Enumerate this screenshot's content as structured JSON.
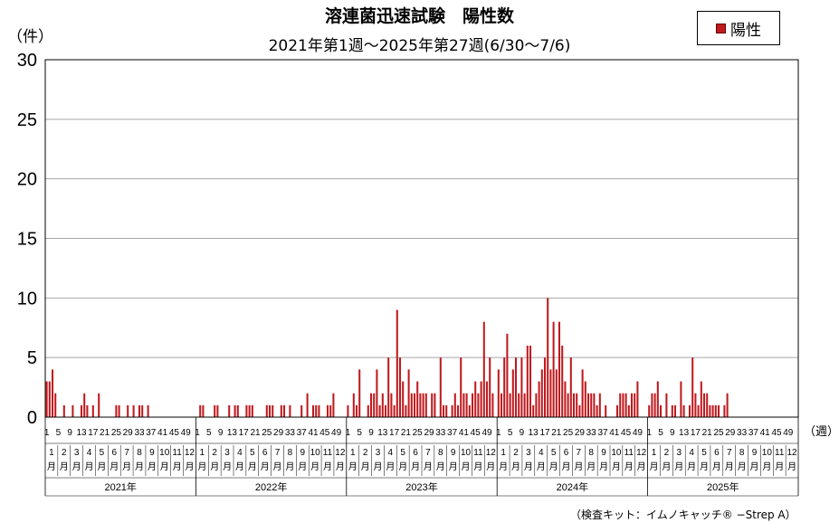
{
  "chart_data": {
    "type": "bar",
    "title": "溶連菌迅速試験　陽性数",
    "subtitle": "2021年第1週～2025年第27週(6/30～7/6)",
    "ylabel": "（件）",
    "xlabel": "（週）",
    "ylim": [
      0,
      30
    ],
    "yticks": [
      0,
      5,
      10,
      15,
      20,
      25,
      30
    ],
    "legend": {
      "position": "top-right",
      "entries": [
        "陽性"
      ]
    },
    "grid": true,
    "note": "（検査キット：イムノキャッチ® −Strep A）",
    "colors": {
      "bar": "#c0191e"
    },
    "week_tick_labels": [
      "1",
      "5",
      "9",
      "13",
      "17",
      "21",
      "25",
      "29",
      "33",
      "37",
      "41",
      "45",
      "49"
    ],
    "month_labels": [
      "1月",
      "2月",
      "3月",
      "4月",
      "5月",
      "6月",
      "7月",
      "8月",
      "9月",
      "10月",
      "11月",
      "12月"
    ],
    "year_labels": [
      "2021年",
      "2022年",
      "2023年",
      "2024年",
      "2025年"
    ],
    "series": [
      {
        "name": "陽性",
        "values": [
          [
            3,
            3,
            4,
            2,
            0,
            0,
            1,
            0,
            0,
            1,
            0,
            0,
            1,
            2,
            1,
            0,
            1,
            0,
            2,
            0,
            0,
            0,
            0,
            0,
            1,
            1,
            0,
            0,
            1,
            0,
            1,
            0,
            1,
            1,
            0,
            1,
            0,
            0,
            0,
            0,
            0,
            0,
            0,
            0,
            0,
            0,
            0,
            0,
            0,
            0,
            0,
            0
          ],
          [
            0,
            1,
            1,
            0,
            0,
            0,
            1,
            1,
            0,
            0,
            0,
            1,
            0,
            1,
            1,
            0,
            0,
            1,
            1,
            1,
            0,
            0,
            0,
            0,
            1,
            1,
            1,
            0,
            0,
            1,
            1,
            0,
            1,
            0,
            0,
            0,
            1,
            0,
            2,
            0,
            1,
            1,
            1,
            0,
            0,
            1,
            1,
            2,
            0,
            0,
            0,
            0
          ],
          [
            1,
            0,
            2,
            1,
            4,
            0,
            0,
            1,
            2,
            2,
            4,
            1,
            2,
            1,
            5,
            2,
            1,
            9,
            5,
            3,
            1,
            4,
            2,
            2,
            3,
            2,
            2,
            2,
            0,
            2,
            2,
            0,
            5,
            1,
            1,
            0,
            1,
            2,
            1,
            5,
            2,
            2,
            1,
            2,
            3,
            2,
            3,
            8,
            3,
            5,
            2,
            0
          ],
          [
            4,
            2,
            5,
            7,
            2,
            4,
            5,
            2,
            5,
            2,
            6,
            6,
            1,
            2,
            3,
            4,
            5,
            10,
            4,
            8,
            4,
            8,
            6,
            3,
            2,
            5,
            2,
            2,
            1,
            4,
            3,
            2,
            2,
            2,
            1,
            2,
            0,
            1,
            0,
            0,
            0,
            1,
            2,
            2,
            2,
            1,
            2,
            2,
            3,
            0,
            0,
            0
          ],
          [
            1,
            2,
            2,
            3,
            1,
            0,
            2,
            0,
            1,
            1,
            0,
            3,
            1,
            0,
            1,
            5,
            2,
            1,
            3,
            2,
            2,
            1,
            1,
            1,
            1,
            0,
            1,
            2,
            0,
            0,
            0,
            0,
            0,
            0,
            0,
            0,
            0,
            0,
            0,
            0,
            0,
            0,
            0,
            0,
            0,
            0,
            0,
            0,
            0,
            0,
            0,
            0
          ]
        ]
      }
    ]
  }
}
